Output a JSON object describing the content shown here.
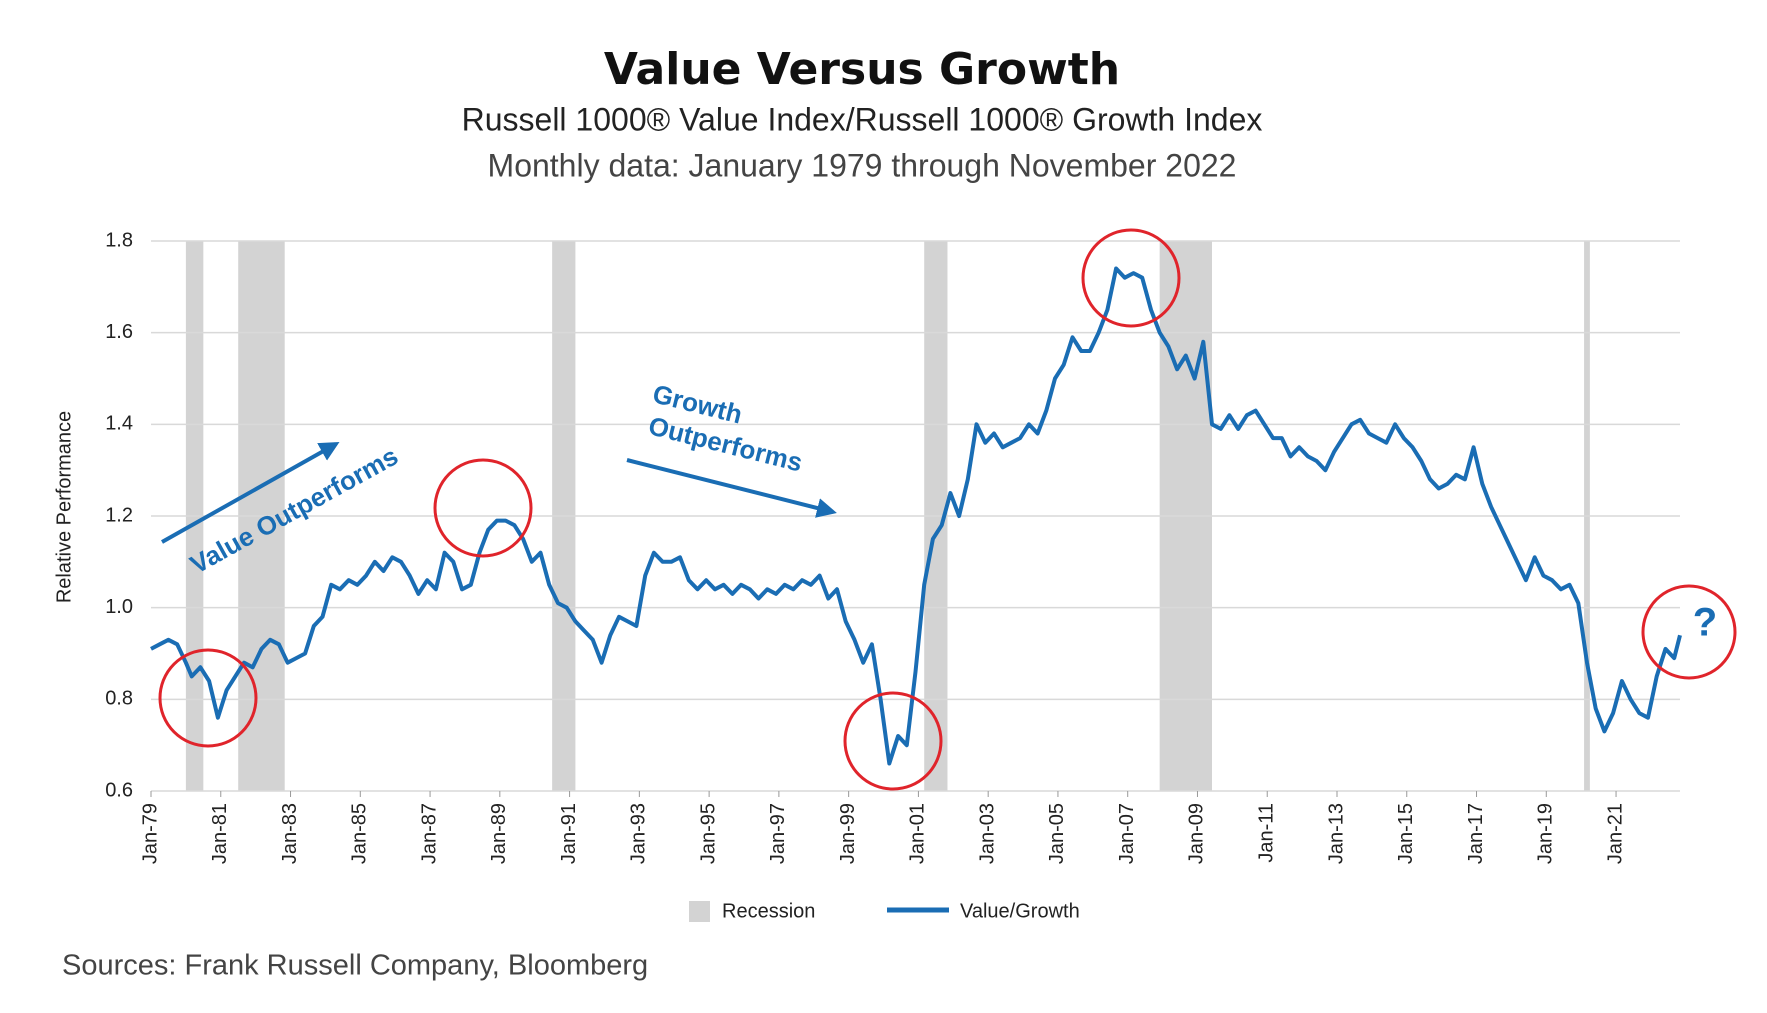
{
  "chart_data": {
    "type": "line",
    "title": "Value Versus Growth",
    "subtitle": "Russell 1000® Value Index/Russell 1000® Growth Index",
    "note": "Monthly data: January 1979 through November 2022",
    "ylabel": "Relative Performance",
    "source": "Sources: Frank Russell Company, Bloomberg",
    "annotations": [
      "Value Outperforms",
      "Growth",
      "Outperforms",
      "?"
    ],
    "ylim": [
      0.6,
      1.8
    ],
    "yticks": [
      {
        "value": 0.6,
        "label": "0.6"
      },
      {
        "value": 0.8,
        "label": "0.8"
      },
      {
        "value": 1.0,
        "label": "1.0"
      },
      {
        "value": 1.2,
        "label": "1.2"
      },
      {
        "value": 1.4,
        "label": "1.4"
      },
      {
        "value": 1.6,
        "label": "1.6"
      },
      {
        "value": 1.8,
        "label": "1.8"
      }
    ],
    "grid": true,
    "xlim": [
      "1979-01",
      "2022-11"
    ],
    "xticks": [
      {
        "value": "1979-01",
        "label": "Jan-79"
      },
      {
        "value": "1981-01",
        "label": "Jan-81"
      },
      {
        "value": "1983-01",
        "label": "Jan-83"
      },
      {
        "value": "1985-01",
        "label": "Jan-85"
      },
      {
        "value": "1987-01",
        "label": "Jan-87"
      },
      {
        "value": "1989-01",
        "label": "Jan-89"
      },
      {
        "value": "1991-01",
        "label": "Jan-91"
      },
      {
        "value": "1993-01",
        "label": "Jan-93"
      },
      {
        "value": "1995-01",
        "label": "Jan-95"
      },
      {
        "value": "1997-01",
        "label": "Jan-97"
      },
      {
        "value": "1999-01",
        "label": "Jan-99"
      },
      {
        "value": "2001-01",
        "label": "Jan-01"
      },
      {
        "value": "2003-01",
        "label": "Jan-03"
      },
      {
        "value": "2005-01",
        "label": "Jan-05"
      },
      {
        "value": "2007-01",
        "label": "Jan-07"
      },
      {
        "value": "2009-01",
        "label": "Jan-09"
      },
      {
        "value": "2011-01",
        "label": "Jan-11"
      },
      {
        "value": "2013-01",
        "label": "Jan-13"
      },
      {
        "value": "2015-01",
        "label": "Jan-15"
      },
      {
        "value": "2017-01",
        "label": "Jan-17"
      },
      {
        "value": "2019-01",
        "label": "Jan-19"
      },
      {
        "value": "2021-01",
        "label": "Jan-21"
      }
    ],
    "recession": {
      "name": "Recession",
      "color": "#d3d3d3",
      "periods": [
        {
          "start": "1980-01",
          "end": "1980-07"
        },
        {
          "start": "1981-07",
          "end": "1982-11"
        },
        {
          "start": "1990-07",
          "end": "1991-03"
        },
        {
          "start": "2001-03",
          "end": "2001-11"
        },
        {
          "start": "2007-12",
          "end": "2009-06"
        },
        {
          "start": "2020-02",
          "end": "2020-04"
        }
      ]
    },
    "x": [
      "1979-01",
      "1979-04",
      "1979-07",
      "1979-10",
      "1980-01",
      "1980-03",
      "1980-06",
      "1980-09",
      "1980-12",
      "1981-03",
      "1981-06",
      "1981-09",
      "1981-12",
      "1982-03",
      "1982-06",
      "1982-09",
      "1982-12",
      "1983-03",
      "1983-06",
      "1983-09",
      "1983-12",
      "1984-03",
      "1984-06",
      "1984-09",
      "1984-12",
      "1985-03",
      "1985-06",
      "1985-09",
      "1985-12",
      "1986-03",
      "1986-06",
      "1986-09",
      "1986-12",
      "1987-03",
      "1987-06",
      "1987-09",
      "1987-12",
      "1988-03",
      "1988-06",
      "1988-09",
      "1988-12",
      "1989-03",
      "1989-06",
      "1989-09",
      "1989-12",
      "1990-03",
      "1990-06",
      "1990-09",
      "1990-12",
      "1991-03",
      "1991-06",
      "1991-09",
      "1991-12",
      "1992-03",
      "1992-06",
      "1992-09",
      "1992-12",
      "1993-03",
      "1993-06",
      "1993-09",
      "1993-12",
      "1994-03",
      "1994-06",
      "1994-09",
      "1994-12",
      "1995-03",
      "1995-06",
      "1995-09",
      "1995-12",
      "1996-03",
      "1996-06",
      "1996-09",
      "1996-12",
      "1997-03",
      "1997-06",
      "1997-09",
      "1997-12",
      "1998-03",
      "1998-06",
      "1998-09",
      "1998-12",
      "1999-03",
      "1999-06",
      "1999-09",
      "1999-12",
      "2000-03",
      "2000-06",
      "2000-09",
      "2000-12",
      "2001-03",
      "2001-06",
      "2001-09",
      "2001-12",
      "2002-03",
      "2002-06",
      "2002-09",
      "2002-12",
      "2003-03",
      "2003-06",
      "2003-09",
      "2003-12",
      "2004-03",
      "2004-06",
      "2004-09",
      "2004-12",
      "2005-03",
      "2005-06",
      "2005-09",
      "2005-12",
      "2006-03",
      "2006-06",
      "2006-09",
      "2006-12",
      "2007-03",
      "2007-06",
      "2007-09",
      "2007-12",
      "2008-03",
      "2008-06",
      "2008-09",
      "2008-12",
      "2009-03",
      "2009-06",
      "2009-09",
      "2009-12",
      "2010-03",
      "2010-06",
      "2010-09",
      "2010-12",
      "2011-03",
      "2011-06",
      "2011-09",
      "2011-12",
      "2012-03",
      "2012-06",
      "2012-09",
      "2012-12",
      "2013-03",
      "2013-06",
      "2013-09",
      "2013-12",
      "2014-03",
      "2014-06",
      "2014-09",
      "2014-12",
      "2015-03",
      "2015-06",
      "2015-09",
      "2015-12",
      "2016-03",
      "2016-06",
      "2016-09",
      "2016-12",
      "2017-03",
      "2017-06",
      "2017-09",
      "2017-12",
      "2018-03",
      "2018-06",
      "2018-09",
      "2018-12",
      "2019-03",
      "2019-06",
      "2019-09",
      "2019-12",
      "2020-03",
      "2020-06",
      "2020-09",
      "2020-12",
      "2021-03",
      "2021-06",
      "2021-09",
      "2021-12",
      "2022-03",
      "2022-06",
      "2022-09",
      "2022-11"
    ],
    "series": [
      {
        "name": "Value/Growth",
        "color": "#1a6db4",
        "values": [
          0.91,
          0.92,
          0.93,
          0.92,
          0.88,
          0.85,
          0.87,
          0.84,
          0.76,
          0.82,
          0.85,
          0.88,
          0.87,
          0.91,
          0.93,
          0.92,
          0.88,
          0.89,
          0.9,
          0.96,
          0.98,
          1.05,
          1.04,
          1.06,
          1.05,
          1.07,
          1.1,
          1.08,
          1.11,
          1.1,
          1.07,
          1.03,
          1.06,
          1.04,
          1.12,
          1.1,
          1.04,
          1.05,
          1.12,
          1.17,
          1.19,
          1.19,
          1.18,
          1.15,
          1.1,
          1.12,
          1.05,
          1.01,
          1.0,
          0.97,
          0.95,
          0.93,
          0.88,
          0.94,
          0.98,
          0.97,
          0.96,
          1.07,
          1.12,
          1.1,
          1.1,
          1.11,
          1.06,
          1.04,
          1.06,
          1.04,
          1.05,
          1.03,
          1.05,
          1.04,
          1.02,
          1.04,
          1.03,
          1.05,
          1.04,
          1.06,
          1.05,
          1.07,
          1.02,
          1.04,
          0.97,
          0.93,
          0.88,
          0.92,
          0.8,
          0.66,
          0.72,
          0.7,
          0.86,
          1.05,
          1.15,
          1.18,
          1.25,
          1.2,
          1.28,
          1.4,
          1.36,
          1.38,
          1.35,
          1.36,
          1.37,
          1.4,
          1.38,
          1.43,
          1.5,
          1.53,
          1.59,
          1.56,
          1.56,
          1.6,
          1.65,
          1.74,
          1.72,
          1.73,
          1.72,
          1.65,
          1.6,
          1.57,
          1.52,
          1.55,
          1.5,
          1.58,
          1.4,
          1.39,
          1.42,
          1.39,
          1.42,
          1.43,
          1.4,
          1.37,
          1.37,
          1.33,
          1.35,
          1.33,
          1.32,
          1.3,
          1.34,
          1.37,
          1.4,
          1.41,
          1.38,
          1.37,
          1.36,
          1.4,
          1.37,
          1.35,
          1.32,
          1.28,
          1.26,
          1.27,
          1.29,
          1.28,
          1.35,
          1.27,
          1.22,
          1.18,
          1.14,
          1.1,
          1.06,
          1.11,
          1.07,
          1.06,
          1.04,
          1.05,
          1.01,
          0.88,
          0.78,
          0.73,
          0.77,
          0.84,
          0.8,
          0.77,
          0.76,
          0.85,
          0.91,
          0.89,
          0.94
        ]
      }
    ]
  }
}
